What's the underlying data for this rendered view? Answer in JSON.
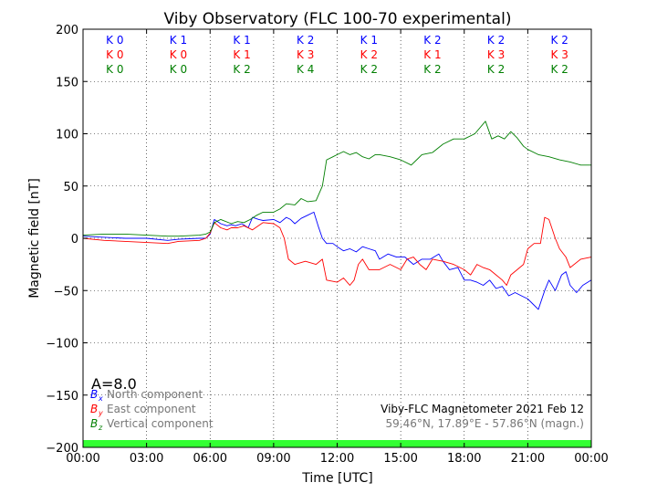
{
  "chart_data": {
    "type": "line",
    "title": "Viby Observatory (FLC 100-70 experimental)",
    "xlabel": "Time [UTC]",
    "ylabel": "Magnetic field [nT]",
    "xlim": [
      0,
      24
    ],
    "ylim": [
      -200,
      200
    ],
    "x_tick_values": [
      0,
      3,
      6,
      9,
      12,
      15,
      18,
      21,
      24
    ],
    "x_tick_labels": [
      "00:00",
      "03:00",
      "06:00",
      "09:00",
      "12:00",
      "15:00",
      "18:00",
      "21:00",
      "00:00"
    ],
    "y_tick_values": [
      200,
      150,
      100,
      50,
      0,
      -50,
      -100,
      -150,
      -200
    ],
    "y_tick_labels": [
      "200",
      "150",
      "100",
      "50",
      "0",
      "−50",
      "−100",
      "−150",
      "−200"
    ],
    "grid": true,
    "legend_position": "bottom-left",
    "colors": {
      "blue": "#0000ff",
      "red": "#ff0000",
      "green": "#007f00",
      "status_bar": "#33ff33"
    },
    "k_index": {
      "bx": [
        "K 0",
        "K 1",
        "K 1",
        "K 2",
        "K 1",
        "K 2",
        "K 2",
        "K 2"
      ],
      "by": [
        "K 0",
        "K 0",
        "K 1",
        "K 3",
        "K 2",
        "K 1",
        "K 3",
        "K 3"
      ],
      "bz": [
        "K 0",
        "K 0",
        "K 2",
        "K 4",
        "K 2",
        "K 2",
        "K 2",
        "K 2"
      ]
    },
    "a_index": "A=8.0",
    "legend": {
      "bx": {
        "symbol": "B",
        "subscript": "x",
        "label": "North component"
      },
      "by": {
        "symbol": "B",
        "subscript": "y",
        "label": "East component"
      },
      "bz": {
        "symbol": "B",
        "subscript": "z",
        "label": "Vertical component"
      }
    },
    "annotation_line1": "Viby-FLC Magnetometer 2021 Feb 12",
    "annotation_line2": "59.46°N, 17.89°E - 57.86°N (magn.)",
    "series": [
      {
        "key": "bx",
        "color": "#0000ff",
        "x": [
          0,
          1,
          2,
          3,
          4,
          4.5,
          5.5,
          5.8,
          6.0,
          6.2,
          6.5,
          6.8,
          7.0,
          7.2,
          7.5,
          7.8,
          8.0,
          8.3,
          8.5,
          9.0,
          9.3,
          9.6,
          9.8,
          10.0,
          10.3,
          10.6,
          10.9,
          11.1,
          11.3,
          11.5,
          11.8,
          12.0,
          12.3,
          12.6,
          12.9,
          13.2,
          13.5,
          13.8,
          14.0,
          14.4,
          14.8,
          15.2,
          15.6,
          16.0,
          16.4,
          16.8,
          17.0,
          17.3,
          17.7,
          18.0,
          18.3,
          18.6,
          18.9,
          19.2,
          19.5,
          19.8,
          20.1,
          20.4,
          20.7,
          21.0,
          21.2,
          21.5,
          21.8,
          22.0,
          22.3,
          22.6,
          22.8,
          23.0,
          23.3,
          23.6,
          24.0
        ],
        "y": [
          2,
          1,
          0,
          0,
          -2,
          -1,
          0,
          0,
          4,
          18,
          14,
          12,
          13,
          12,
          14,
          10,
          20,
          18,
          17,
          18,
          15,
          20,
          18,
          14,
          19,
          22,
          25,
          12,
          0,
          -5,
          -5,
          -8,
          -12,
          -10,
          -13,
          -8,
          -10,
          -12,
          -20,
          -15,
          -18,
          -18,
          -25,
          -20,
          -20,
          -15,
          -22,
          -30,
          -28,
          -40,
          -40,
          -42,
          -45,
          -40,
          -48,
          -46,
          -55,
          -52,
          -55,
          -58,
          -62,
          -68,
          -50,
          -40,
          -50,
          -35,
          -32,
          -45,
          -52,
          -45,
          -40
        ]
      },
      {
        "key": "by",
        "color": "#ff0000",
        "x": [
          0,
          1,
          2,
          3,
          4,
          4.5,
          5.5,
          5.8,
          6.0,
          6.2,
          6.5,
          6.8,
          7.0,
          7.3,
          7.6,
          8.0,
          8.5,
          9.0,
          9.3,
          9.5,
          9.7,
          10.0,
          10.5,
          11.0,
          11.3,
          11.5,
          12.0,
          12.3,
          12.6,
          12.8,
          13.0,
          13.2,
          13.5,
          14.0,
          14.5,
          15.0,
          15.3,
          15.6,
          15.9,
          16.2,
          16.5,
          17.0,
          17.5,
          18.0,
          18.3,
          18.6,
          18.9,
          19.2,
          19.5,
          19.8,
          20.0,
          20.2,
          20.5,
          20.8,
          21.0,
          21.3,
          21.6,
          21.8,
          22.0,
          22.3,
          22.5,
          22.8,
          23.0,
          23.5,
          24.0
        ],
        "y": [
          0,
          -2,
          -3,
          -4,
          -5,
          -3,
          -2,
          0,
          5,
          15,
          10,
          8,
          10,
          10,
          12,
          8,
          15,
          14,
          10,
          0,
          -20,
          -25,
          -22,
          -25,
          -20,
          -40,
          -42,
          -38,
          -45,
          -40,
          -25,
          -20,
          -30,
          -30,
          -25,
          -30,
          -20,
          -18,
          -25,
          -30,
          -20,
          -22,
          -25,
          -30,
          -35,
          -25,
          -28,
          -30,
          -35,
          -40,
          -45,
          -35,
          -30,
          -25,
          -10,
          -5,
          -5,
          20,
          18,
          0,
          -10,
          -18,
          -28,
          -20,
          -18
        ]
      },
      {
        "key": "bz",
        "color": "#007f00",
        "x": [
          0,
          1,
          2,
          3,
          4,
          4.5,
          5.5,
          5.8,
          6.0,
          6.2,
          6.5,
          7.0,
          7.3,
          7.6,
          7.9,
          8.2,
          8.5,
          9.0,
          9.3,
          9.6,
          10.0,
          10.3,
          10.6,
          11.0,
          11.3,
          11.5,
          11.8,
          12.0,
          12.3,
          12.6,
          12.9,
          13.2,
          13.5,
          13.8,
          14.0,
          14.5,
          15.0,
          15.5,
          15.8,
          16.0,
          16.5,
          17.0,
          17.5,
          18.0,
          18.5,
          19.0,
          19.3,
          19.6,
          19.9,
          20.2,
          20.5,
          20.8,
          21.0,
          21.5,
          22.0,
          22.5,
          23.0,
          23.5,
          24.0
        ],
        "y": [
          3,
          4,
          4,
          3,
          2,
          2,
          3,
          4,
          6,
          15,
          18,
          14,
          16,
          15,
          18,
          22,
          25,
          25,
          28,
          33,
          32,
          38,
          35,
          36,
          50,
          75,
          78,
          80,
          83,
          80,
          82,
          78,
          76,
          80,
          80,
          78,
          75,
          70,
          76,
          80,
          82,
          90,
          95,
          95,
          100,
          112,
          95,
          98,
          95,
          102,
          96,
          88,
          85,
          80,
          78,
          75,
          73,
          70,
          70
        ]
      }
    ]
  }
}
